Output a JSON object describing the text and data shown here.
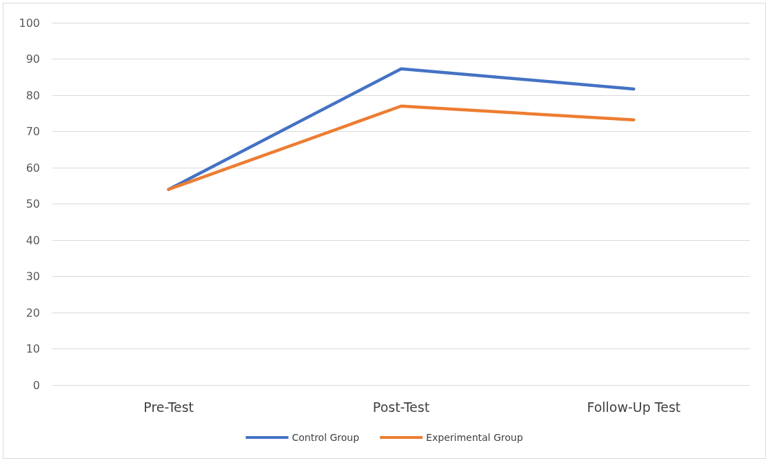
{
  "chart_data": {
    "type": "line",
    "categories": [
      "Pre-Test",
      "Post-Test",
      "Follow-Up Test"
    ],
    "series": [
      {
        "name": "Control Group",
        "color": "#4472c4",
        "values": [
          54,
          87.3,
          81.7
        ]
      },
      {
        "name": "Experimental Group",
        "color": "#ed7d31",
        "values": [
          54,
          77,
          73.2
        ]
      }
    ],
    "ylim": [
      0,
      100
    ],
    "yticks": [
      0,
      10,
      20,
      30,
      40,
      50,
      60,
      70,
      80,
      90,
      100
    ],
    "grid": "y",
    "legend": "bottom",
    "marker": "none",
    "line_style": "solid"
  }
}
